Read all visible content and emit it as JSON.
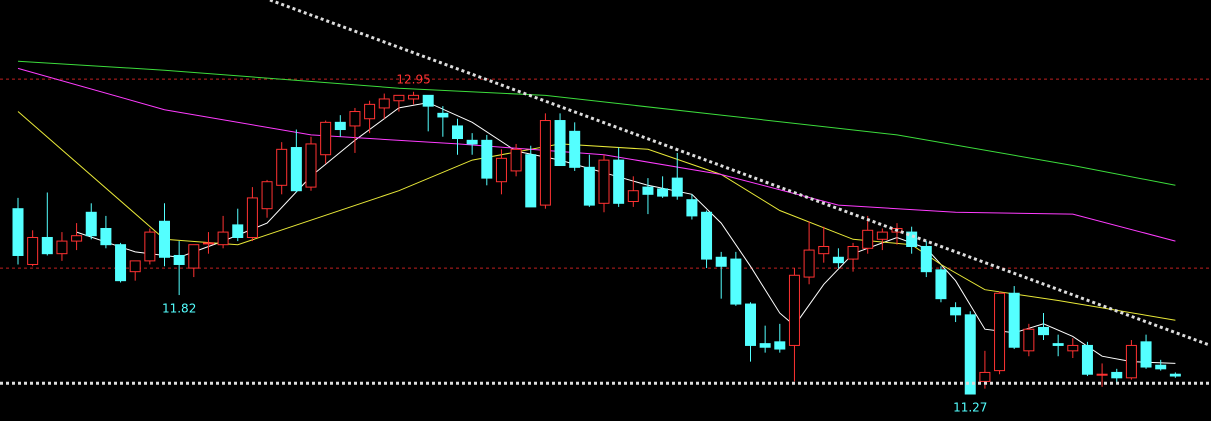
{
  "chart_data": {
    "type": "candlestick",
    "ylim": [
      11.12,
      13.46
    ],
    "up_color": "#ff3232",
    "down_color": "#54ffff",
    "open": [
      12.3,
      11.99,
      12.14,
      12.05,
      12.12,
      12.28,
      12.19,
      12.1,
      11.95,
      12.01,
      12.23,
      12.04,
      11.97,
      12.11,
      12.1,
      12.21,
      12.14,
      12.3,
      12.43,
      12.64,
      12.42,
      12.6,
      12.78,
      12.76,
      12.8,
      12.86,
      12.9,
      12.91,
      12.93,
      12.83,
      12.76,
      12.68,
      12.68,
      12.45,
      12.51,
      12.6,
      12.32,
      12.79,
      12.73,
      12.53,
      12.33,
      12.57,
      12.34,
      12.42,
      12.41,
      12.47,
      12.35,
      12.28,
      12.03,
      12.02,
      11.77,
      11.55,
      11.56,
      11.54,
      11.92,
      12.05,
      12.03,
      12.02,
      12.08,
      12.13,
      12.17,
      12.17,
      12.09,
      11.96,
      11.75,
      11.71,
      11.34,
      11.4,
      11.83,
      11.51,
      11.64,
      11.55,
      11.51,
      11.54,
      11.38,
      11.39,
      11.36,
      11.56,
      11.43,
      11.38
    ],
    "high": [
      12.36,
      12.18,
      12.39,
      12.17,
      12.22,
      12.33,
      12.26,
      12.11,
      12.01,
      12.19,
      12.33,
      12.12,
      12.1,
      12.17,
      12.26,
      12.3,
      12.42,
      12.46,
      12.67,
      12.74,
      12.7,
      12.79,
      12.82,
      12.86,
      12.9,
      12.94,
      12.93,
      12.95,
      12.93,
      12.87,
      12.8,
      12.72,
      12.71,
      12.63,
      12.66,
      12.65,
      12.83,
      12.83,
      12.78,
      12.6,
      12.6,
      12.64,
      12.48,
      12.47,
      12.48,
      12.61,
      12.38,
      12.29,
      12.06,
      12.06,
      11.78,
      11.65,
      11.66,
      11.97,
      12.23,
      12.2,
      12.08,
      12.11,
      12.26,
      12.19,
      12.22,
      12.2,
      12.12,
      11.98,
      11.78,
      11.73,
      11.51,
      11.84,
      11.87,
      11.66,
      11.72,
      11.6,
      11.58,
      11.56,
      11.44,
      11.41,
      11.57,
      11.6,
      11.46,
      11.39
    ],
    "low": [
      11.99,
      11.98,
      12.04,
      12.01,
      12.07,
      12.13,
      12.08,
      11.89,
      11.9,
      11.99,
      11.98,
      11.82,
      11.92,
      12.05,
      12.08,
      12.12,
      12.12,
      12.25,
      12.38,
      12.39,
      12.4,
      12.55,
      12.7,
      12.61,
      12.72,
      12.8,
      12.84,
      12.88,
      12.73,
      12.7,
      12.6,
      12.6,
      12.43,
      12.38,
      12.48,
      12.31,
      12.3,
      12.54,
      12.51,
      12.31,
      12.28,
      12.31,
      12.31,
      12.27,
      12.36,
      12.35,
      12.24,
      11.97,
      11.8,
      11.76,
      11.45,
      11.5,
      11.5,
      11.34,
      11.88,
      12.0,
      11.97,
      11.95,
      12.05,
      12.07,
      12.1,
      12.05,
      11.92,
      11.78,
      11.67,
      11.27,
      11.3,
      11.38,
      11.52,
      11.48,
      11.57,
      11.48,
      11.47,
      11.37,
      11.31,
      11.33,
      11.35,
      11.41,
      11.4,
      11.36
    ],
    "close": [
      12.04,
      12.14,
      12.05,
      12.12,
      12.15,
      12.15,
      12.1,
      11.9,
      12.01,
      12.17,
      12.03,
      11.99,
      12.1,
      12.11,
      12.17,
      12.14,
      12.36,
      12.45,
      12.63,
      12.4,
      12.66,
      12.78,
      12.74,
      12.84,
      12.88,
      12.91,
      12.93,
      12.93,
      12.87,
      12.81,
      12.69,
      12.66,
      12.47,
      12.58,
      12.63,
      12.31,
      12.79,
      12.54,
      12.53,
      12.32,
      12.57,
      12.33,
      12.4,
      12.38,
      12.37,
      12.37,
      12.26,
      12.02,
      11.98,
      11.77,
      11.54,
      11.53,
      11.52,
      11.93,
      12.07,
      12.09,
      12.0,
      12.09,
      12.18,
      12.17,
      12.19,
      12.09,
      11.95,
      11.8,
      11.71,
      11.27,
      11.39,
      11.83,
      11.53,
      11.63,
      11.6,
      11.54,
      11.54,
      11.38,
      11.38,
      11.36,
      11.54,
      11.42,
      11.41,
      11.37
    ],
    "lines": [
      {
        "color": "#ffffff",
        "x": [
          4,
          8,
          11,
          14,
          17,
          20,
          23,
          26,
          28,
          31,
          34,
          37,
          40,
          43,
          46,
          48,
          50,
          52,
          53,
          55,
          57,
          60,
          62,
          64,
          66,
          68,
          70,
          72,
          74,
          76,
          79
        ],
        "values": [
          12.17,
          12.06,
          12.03,
          12.12,
          12.22,
          12.48,
          12.68,
          12.86,
          12.89,
          12.78,
          12.62,
          12.57,
          12.5,
          12.43,
          12.38,
          12.22,
          11.98,
          11.72,
          11.65,
          11.88,
          12.05,
          12.14,
          12.08,
          11.9,
          11.63,
          11.61,
          11.66,
          11.59,
          11.48,
          11.45,
          11.44
        ]
      },
      {
        "color": "#e8e838",
        "x": [
          0,
          10,
          15,
          26,
          31,
          37,
          43,
          48,
          52,
          57,
          61,
          63,
          66,
          71,
          79
        ],
        "values": [
          12.84,
          12.13,
          12.1,
          12.4,
          12.57,
          12.66,
          12.63,
          12.49,
          12.29,
          12.13,
          12.1,
          11.99,
          11.85,
          11.79,
          11.68
        ]
      },
      {
        "color": "#ff3cff",
        "x": [
          0,
          10,
          20,
          30,
          40,
          48,
          56,
          64,
          72,
          79
        ],
        "values": [
          13.08,
          12.85,
          12.71,
          12.66,
          12.6,
          12.49,
          12.32,
          12.28,
          12.27,
          12.12
        ]
      },
      {
        "color": "#3cdc3c",
        "x": [
          0,
          10,
          26,
          36,
          48,
          60,
          72,
          79
        ],
        "values": [
          13.12,
          13.07,
          12.97,
          12.93,
          12.82,
          12.71,
          12.54,
          12.43
        ]
      }
    ],
    "reference_lines": [
      13.02,
      11.97
    ],
    "reference_color": "#c02020",
    "support": 11.33,
    "trendline": {
      "x": [
        17.2,
        81.4
      ],
      "values": [
        13.46,
        11.54
      ]
    },
    "annotations": [
      {
        "candle": 27,
        "at": "high",
        "label": "12.95"
      },
      {
        "candle": 11,
        "at": "low",
        "label": "11.82"
      },
      {
        "candle": 65,
        "at": "low",
        "label": "11.27"
      }
    ]
  }
}
